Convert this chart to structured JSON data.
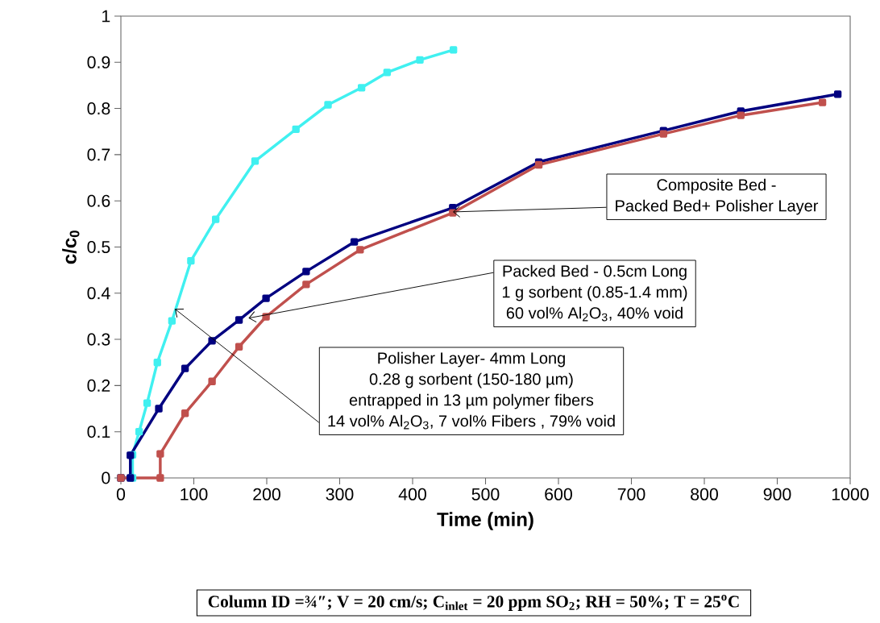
{
  "chart_data": {
    "type": "line",
    "xlabel": "Time (min)",
    "ylabel": "c/c$_{0}$",
    "xlim": [
      0,
      1000
    ],
    "xticks": [
      0,
      100,
      200,
      300,
      400,
      500,
      600,
      700,
      800,
      900,
      1000
    ],
    "ylim": [
      0,
      1
    ],
    "yticks": [
      0,
      0.1,
      0.2,
      0.3,
      0.4,
      0.5,
      0.6,
      0.7,
      0.8,
      0.9,
      1
    ],
    "grid": false,
    "marker": "square",
    "line_style": "solid",
    "series": [
      {
        "color": "#40f0f0",
        "x": [
          0,
          16,
          16,
          25,
          36,
          50,
          70,
          96,
          130,
          184,
          240,
          284,
          330,
          365,
          410,
          456
        ],
        "values": [
          0,
          0,
          0.05,
          0.1,
          0.162,
          0.25,
          0.34,
          0.47,
          0.56,
          0.686,
          0.755,
          0.808,
          0.845,
          0.878,
          0.905,
          0.927
        ]
      },
      {
        "color": "#000080",
        "x": [
          0,
          13,
          13,
          52,
          88,
          125,
          162,
          199,
          254,
          320,
          455,
          573,
          744,
          850,
          983
        ],
        "values": [
          0,
          0,
          0.049,
          0.15,
          0.237,
          0.297,
          0.342,
          0.389,
          0.447,
          0.511,
          0.585,
          0.684,
          0.752,
          0.794,
          0.831
        ]
      },
      {
        "color": "#c0504d",
        "x": [
          0,
          54,
          54,
          88,
          125,
          162,
          199,
          254,
          328,
          455,
          573,
          744,
          850,
          962
        ],
        "values": [
          0,
          0,
          0.052,
          0.14,
          0.209,
          0.284,
          0.349,
          0.419,
          0.494,
          0.574,
          0.678,
          0.745,
          0.785,
          0.813
        ]
      }
    ],
    "annotations": [
      "Column ID =¾″; V = 20 cm/s; C$_{inlet}$ = 20 ppm SO$_{2}$; RH = 50%; T = 25$^{o}$C",
      "Composite Bed -",
      {
        "text": "Packed Bed+ Polisher Layer",
        "x": 455,
        "y": 0.576
      },
      {
        "text": "Packed Bed - 0.5cm Long",
        "x": 175,
        "y": 0.346
      },
      "1 g sorbent (0.85-1.4 mm)",
      "60 vol% Al$_{2}$O$_{3}$, 40% void",
      "Polisher Layer-  4mm Long",
      "0.28 g sorbent (150-180 µm)",
      "entrapped in 13 µm polymer fibers",
      {
        "text": "14 vol% Al$_{2}$O$_{3}$, 7 vol% Fibers , 79% void",
        "x": 74,
        "y": 0.366
      }
    ]
  }
}
